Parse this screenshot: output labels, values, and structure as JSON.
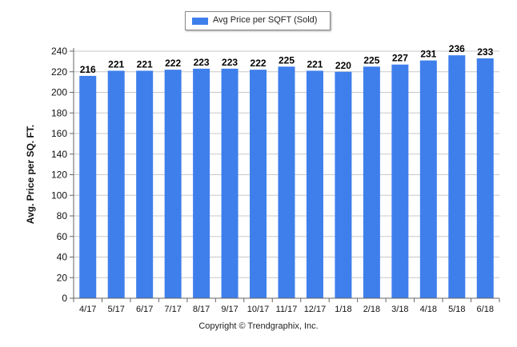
{
  "chart_data": {
    "type": "bar",
    "categories": [
      "4/17",
      "5/17",
      "6/17",
      "7/17",
      "8/17",
      "9/17",
      "10/17",
      "11/17",
      "12/17",
      "1/18",
      "2/18",
      "3/18",
      "4/18",
      "5/18",
      "6/18"
    ],
    "series": [
      {
        "name": "Avg Price per SQFT (Sold)",
        "values": [
          216,
          221,
          221,
          222,
          223,
          223,
          222,
          225,
          221,
          220,
          225,
          227,
          231,
          236,
          233
        ]
      }
    ],
    "ylabel": "Avg. Price per SQ. FT.",
    "xlabel": "",
    "ylim": [
      0,
      240
    ],
    "yticks": [
      0,
      20,
      40,
      60,
      80,
      100,
      120,
      140,
      160,
      180,
      200,
      220,
      240
    ],
    "grid": true,
    "legend_position": "top-center",
    "data_labels": true,
    "bar_color": "#3f7fec"
  },
  "footer": {
    "copyright": "Copyright © Trendgraphix, Inc."
  }
}
